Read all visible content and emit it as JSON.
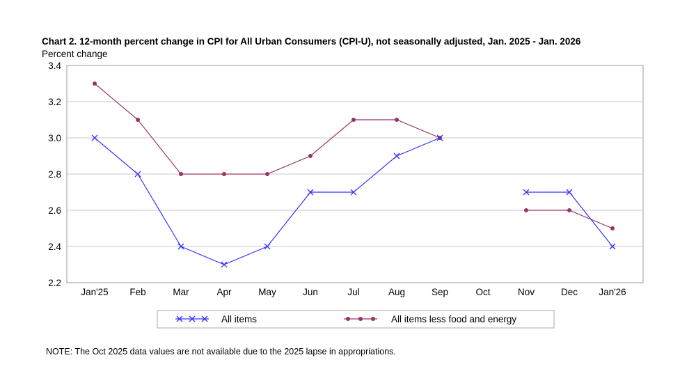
{
  "chart_data": {
    "type": "line",
    "title": "Chart 2. 12-month percent change in CPI for All Urban Consumers (CPI-U), not seasonally adjusted, Jan. 2025 - Jan. 2026",
    "ylabel": "Percent change",
    "xlabel": "",
    "categories": [
      "Jan'25",
      "Feb",
      "Mar",
      "Apr",
      "May",
      "Jun",
      "Jul",
      "Aug",
      "Sep",
      "Oct",
      "Nov",
      "Dec",
      "Jan'26"
    ],
    "ylim": [
      2.2,
      3.4
    ],
    "yticks": [
      "2.2",
      "2.4",
      "2.6",
      "2.8",
      "3.0",
      "3.2",
      "3.4"
    ],
    "grid": true,
    "legend_position": "bottom",
    "series": [
      {
        "name": "All items",
        "color": "#3333ff",
        "marker": "x",
        "values": [
          3.0,
          2.8,
          2.4,
          2.3,
          2.4,
          2.7,
          2.7,
          2.9,
          3.0,
          null,
          2.7,
          2.7,
          2.4
        ]
      },
      {
        "name": "All items less food and energy",
        "color": "#993366",
        "marker": "circle",
        "values": [
          3.3,
          3.1,
          2.8,
          2.8,
          2.8,
          2.9,
          3.1,
          3.1,
          3.0,
          null,
          2.6,
          2.6,
          2.5
        ]
      }
    ],
    "note": "NOTE: The Oct 2025 data values are not available due to the 2025 lapse in appropriations."
  }
}
